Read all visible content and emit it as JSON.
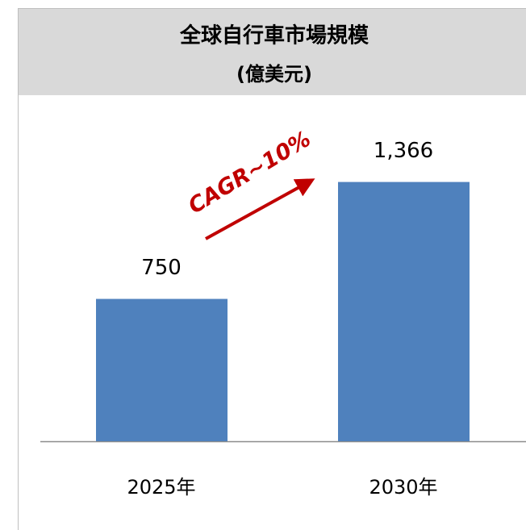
{
  "chart_data": {
    "type": "bar",
    "title": "全球自行車市場規模",
    "subtitle": "(億美元)",
    "categories": [
      "2025年",
      "2030年"
    ],
    "values": [
      750,
      1366
    ],
    "value_labels": [
      "750",
      "1,366"
    ],
    "color": "#4f81bd",
    "ylim": [
      0,
      1700
    ],
    "annotation": "CAGR~10%",
    "annotation_color": "#c00000"
  }
}
